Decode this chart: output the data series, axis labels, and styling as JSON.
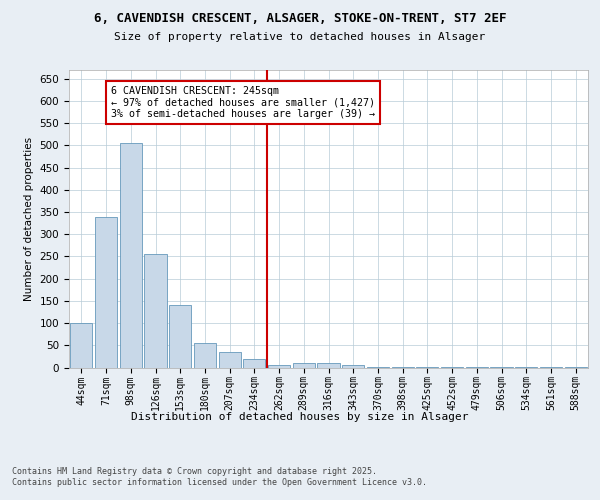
{
  "title1": "6, CAVENDISH CRESCENT, ALSAGER, STOKE-ON-TRENT, ST7 2EF",
  "title2": "Size of property relative to detached houses in Alsager",
  "xlabel": "Distribution of detached houses by size in Alsager",
  "ylabel": "Number of detached properties",
  "bar_color": "#c8d8e8",
  "bar_edge_color": "#6699bb",
  "vline_x": 7.5,
  "vline_color": "#cc0000",
  "annotation_text": "6 CAVENDISH CRESCENT: 245sqm\n← 97% of detached houses are smaller (1,427)\n3% of semi-detached houses are larger (39) →",
  "annotation_box_color": "#cc0000",
  "bins": [
    "44sqm",
    "71sqm",
    "98sqm",
    "126sqm",
    "153sqm",
    "180sqm",
    "207sqm",
    "234sqm",
    "262sqm",
    "289sqm",
    "316sqm",
    "343sqm",
    "370sqm",
    "398sqm",
    "425sqm",
    "452sqm",
    "479sqm",
    "506sqm",
    "534sqm",
    "561sqm",
    "588sqm"
  ],
  "values": [
    100,
    340,
    505,
    255,
    140,
    55,
    35,
    20,
    5,
    10,
    10,
    5,
    2,
    1,
    1,
    1,
    1,
    1,
    1,
    1,
    1
  ],
  "ylim": [
    0,
    670
  ],
  "yticks": [
    0,
    50,
    100,
    150,
    200,
    250,
    300,
    350,
    400,
    450,
    500,
    550,
    600,
    650
  ],
  "footnote": "Contains HM Land Registry data © Crown copyright and database right 2025.\nContains public sector information licensed under the Open Government Licence v3.0.",
  "bg_color": "#e8eef4",
  "plot_bg_color": "#ffffff",
  "grid_color": "#b8ccd8"
}
